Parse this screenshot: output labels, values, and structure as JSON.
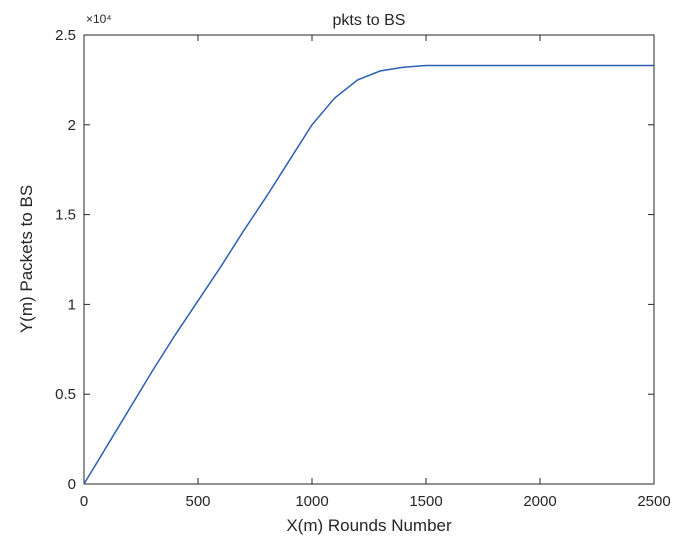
{
  "chart_data": {
    "type": "line",
    "title": "pkts to BS",
    "xlabel": "X(m) Rounds Number",
    "ylabel": "Y(m) Packets to BS",
    "y_exponent_label": "×10⁴",
    "xlim": [
      0,
      2500
    ],
    "ylim": [
      0,
      25000
    ],
    "x_ticks": [
      0,
      500,
      1000,
      1500,
      2000,
      2500
    ],
    "y_ticks": [
      0,
      5000,
      10000,
      15000,
      20000,
      25000
    ],
    "x_tick_labels": [
      "0",
      "500",
      "1000",
      "1500",
      "2000",
      "2500"
    ],
    "y_tick_labels": [
      "0",
      "0.5",
      "1",
      "1.5",
      "2",
      "2.5"
    ],
    "grid": false,
    "colors": {
      "line": "#2f5fb3",
      "axis": "#262626"
    },
    "series": [
      {
        "x": [
          0,
          100,
          200,
          300,
          400,
          500,
          600,
          700,
          800,
          900,
          1000,
          1100,
          1200,
          1300,
          1400,
          1500,
          1550,
          2000,
          2500
        ],
        "y": [
          0,
          2100,
          4200,
          6300,
          8300,
          10200,
          12100,
          14100,
          16000,
          18000,
          20000,
          21500,
          22500,
          23000,
          23200,
          23300,
          23300,
          23300,
          23300
        ]
      }
    ]
  }
}
